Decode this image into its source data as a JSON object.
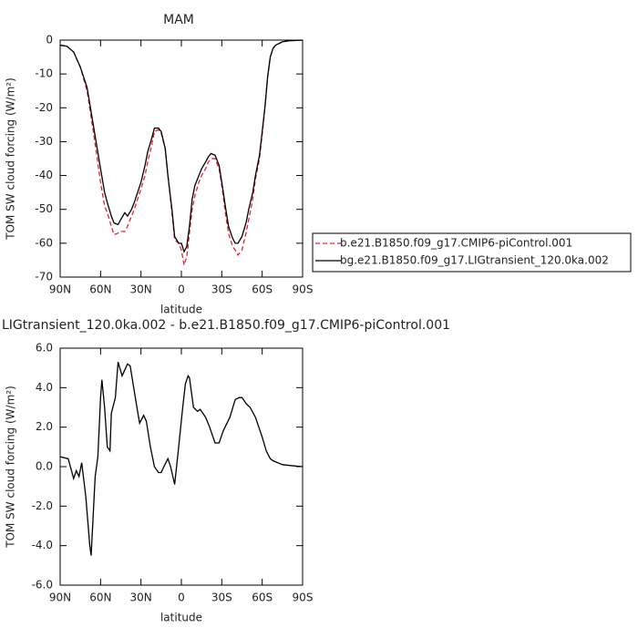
{
  "chart_data": [
    {
      "type": "line",
      "title": "MAM",
      "xlabel": "latitude",
      "ylabel": "TOM SW cloud forcing (W/m²)",
      "x": [
        90,
        85,
        80,
        75,
        70,
        65,
        60,
        57,
        55,
        52,
        50,
        47,
        45,
        42,
        40,
        37,
        35,
        30,
        27,
        25,
        22,
        20,
        17,
        15,
        12,
        10,
        7,
        5,
        2,
        0,
        -2,
        -4,
        -6,
        -8,
        -10,
        -13,
        -15,
        -18,
        -20,
        -22,
        -25,
        -28,
        -30,
        -33,
        -35,
        -38,
        -40,
        -42,
        -45,
        -48,
        -50,
        -53,
        -55,
        -58,
        -60,
        -62,
        -64,
        -66,
        -68,
        -70,
        -75,
        -80,
        -90
      ],
      "series": [
        {
          "name": "b.e21.B1850.f09_g17.CMIP6-piControl.001",
          "color": "#e8202a",
          "linestyle": "dashed",
          "values": [
            -1.5,
            -1.8,
            -3.5,
            -8,
            -15,
            -28,
            -42,
            -49,
            -51,
            -55,
            -57.5,
            -57,
            -56.5,
            -56.5,
            -55,
            -52,
            -50,
            -44,
            -40,
            -36,
            -31,
            -27,
            -26.5,
            -27.5,
            -32,
            -40,
            -51,
            -59,
            -60,
            -62,
            -66.5,
            -64,
            -57,
            -50,
            -46,
            -42,
            -40,
            -38,
            -36,
            -35,
            -35,
            -38,
            -43,
            -52,
            -57,
            -61,
            -62,
            -63.5,
            -62,
            -57,
            -53,
            -47,
            -41,
            -35,
            -28,
            -20,
            -11,
            -5,
            -2.5,
            -1.5,
            -0.5,
            -0.2,
            0
          ]
        },
        {
          "name": "bg.e21.B1850.f09_g17.LIGtransient_120.0ka.002",
          "color": "#000000",
          "linestyle": "solid",
          "values": [
            -1.5,
            -1.8,
            -3.5,
            -8,
            -14,
            -26,
            -38,
            -45,
            -48,
            -52,
            -54,
            -54.5,
            -53,
            -51,
            -52,
            -50,
            -48,
            -42,
            -37,
            -33,
            -29,
            -26,
            -26,
            -27,
            -32,
            -40,
            -50,
            -58,
            -60,
            -60,
            -62.5,
            -61,
            -55,
            -47,
            -43,
            -40,
            -38,
            -36,
            -34.5,
            -33.5,
            -34,
            -37,
            -42,
            -50,
            -55,
            -58.5,
            -60,
            -60,
            -58,
            -54,
            -50,
            -45,
            -40,
            -34,
            -27,
            -20,
            -11,
            -5,
            -2.5,
            -1.5,
            -0.5,
            -0.2,
            0
          ]
        }
      ],
      "xlim": [
        90,
        -90
      ],
      "xticks": [
        {
          "value": 90,
          "label": "90N"
        },
        {
          "value": 60,
          "label": "60N"
        },
        {
          "value": 30,
          "label": "30N"
        },
        0,
        {
          "value": -30,
          "label": "30S"
        },
        {
          "value": -60,
          "label": "60S"
        },
        {
          "value": -90,
          "label": "90S"
        }
      ],
      "ylim": [
        -70,
        0
      ],
      "yticks": [
        0,
        -10,
        -20,
        -30,
        -40,
        -50,
        -60,
        -70
      ],
      "legend": "outside-right"
    },
    {
      "type": "line",
      "title": "LIGtransient_120.0ka.002 - b.e21.B1850.f09_g17.CMIP6-piControl.001",
      "xlabel": "latitude",
      "ylabel": "TOM SW cloud forcing (W/m²)",
      "x": [
        90,
        84,
        80,
        78,
        76,
        74,
        71,
        68,
        67,
        64,
        62,
        60,
        59,
        57,
        55,
        53,
        52,
        49,
        47,
        44,
        40,
        38,
        33,
        31,
        28,
        26,
        23,
        20,
        17,
        15,
        13,
        10,
        8,
        5,
        2,
        -1,
        -3,
        -5,
        -6,
        -9,
        -12,
        -14,
        -18,
        -21,
        -25,
        -28,
        -31,
        -36,
        -40,
        -43,
        -45,
        -48,
        -51,
        -55,
        -60,
        -63,
        -66,
        -68,
        -75,
        -82,
        -90
      ],
      "values": [
        0.5,
        0.4,
        -0.6,
        -0.2,
        -0.5,
        0.2,
        -1.5,
        -4,
        -4.5,
        -0.5,
        0.5,
        3.5,
        4.4,
        3,
        1,
        0.8,
        2.7,
        3.5,
        5.3,
        4.6,
        5.2,
        5.1,
        3,
        2.2,
        2.6,
        2.3,
        1,
        0,
        -0.3,
        -0.3,
        0,
        0.4,
        0,
        -0.9,
        1,
        3,
        4.2,
        4.6,
        4.5,
        3,
        2.8,
        2.9,
        2.5,
        2,
        1.2,
        1.2,
        1.8,
        2.5,
        3.4,
        3.5,
        3.5,
        3.2,
        3,
        2.5,
        1.5,
        0.8,
        0.4,
        0.3,
        0.1,
        0.05,
        0
      ],
      "color": "#000000",
      "linestyle": "solid",
      "xlim": [
        90,
        -90
      ],
      "xticks": [
        {
          "value": 90,
          "label": "90N"
        },
        {
          "value": 60,
          "label": "60N"
        },
        {
          "value": 30,
          "label": "30N"
        },
        0,
        {
          "value": -30,
          "label": "30S"
        },
        {
          "value": -60,
          "label": "60S"
        },
        {
          "value": -90,
          "label": "90S"
        }
      ],
      "ylim": [
        -6,
        6
      ],
      "yticks": [
        {
          "value": 6,
          "label": "6.0"
        },
        {
          "value": 4,
          "label": "4.0"
        },
        {
          "value": 2,
          "label": "2.0"
        },
        {
          "value": 0,
          "label": "0.0"
        },
        {
          "value": -2,
          "label": "-2.0"
        },
        {
          "value": -4,
          "label": "-4.0"
        },
        {
          "value": -6,
          "label": "-6.0"
        }
      ]
    }
  ]
}
